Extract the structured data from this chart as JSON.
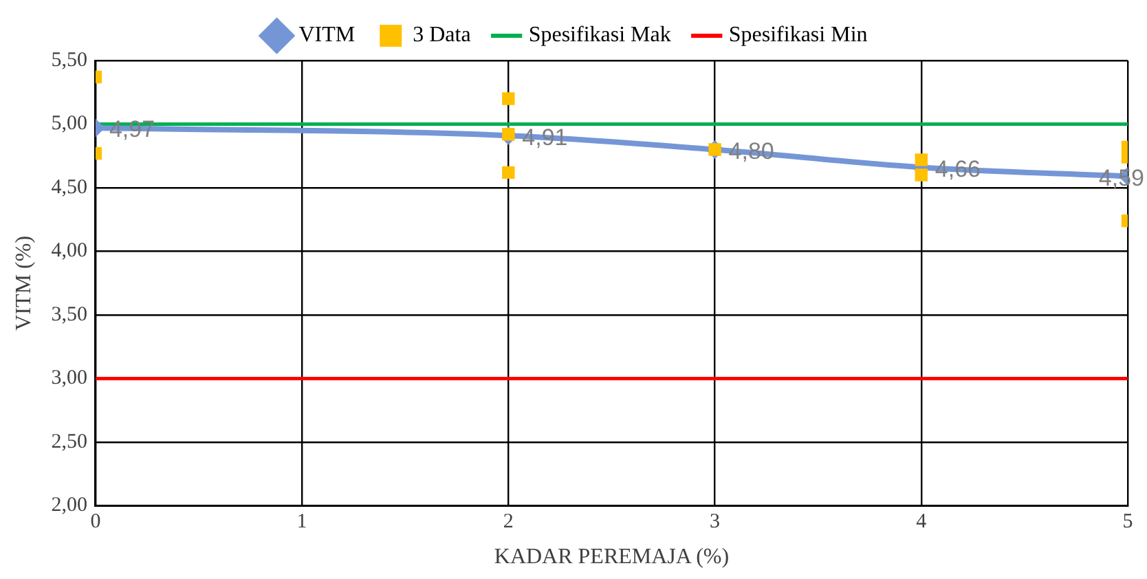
{
  "chart_data": {
    "type": "line",
    "xlabel": "KADAR PEREMAJA (%)",
    "ylabel": "VITM (%)",
    "xlim": [
      0,
      5
    ],
    "xticks": [
      0,
      1,
      2,
      3,
      4,
      5
    ],
    "ylim": [
      2,
      5.5
    ],
    "yticks": [
      {
        "value": 2,
        "label": "2,00"
      },
      {
        "value": 2.5,
        "label": "2,50"
      },
      {
        "value": 3,
        "label": "3,00"
      },
      {
        "value": 3.5,
        "label": "3,50"
      },
      {
        "value": 4,
        "label": "4,00"
      },
      {
        "value": 4.5,
        "label": "4,50"
      },
      {
        "value": 5,
        "label": "5,00"
      },
      {
        "value": 5.5,
        "label": "5,50"
      }
    ],
    "grid": true,
    "legend": "top",
    "series": [
      {
        "name": "VITM",
        "color": "#7596d6",
        "marker": "diamond",
        "x": [
          0,
          2,
          3,
          4,
          5
        ],
        "values": [
          4.97,
          4.91,
          4.8,
          4.66,
          4.59
        ],
        "value_labels": [
          "4,97",
          "4,91",
          "4,80",
          "4,66",
          "4,59"
        ]
      },
      {
        "name": "3 Data",
        "type": "scatter",
        "color": "#ffc000",
        "marker": "square",
        "x": [
          0,
          0,
          2,
          2,
          2,
          3,
          4,
          4,
          5,
          5,
          5
        ],
        "values": [
          5.37,
          4.77,
          5.2,
          4.92,
          4.62,
          4.8,
          4.72,
          4.6,
          4.82,
          4.74,
          4.24
        ]
      },
      {
        "name": "Spesifikasi Mak",
        "color": "#00b050",
        "marker": "none",
        "x": [
          0,
          5
        ],
        "values": [
          5,
          5
        ]
      },
      {
        "name": "Spesifikasi Min",
        "color": "#ff0000",
        "marker": "none",
        "x": [
          0,
          5
        ],
        "values": [
          3,
          3
        ]
      }
    ]
  }
}
